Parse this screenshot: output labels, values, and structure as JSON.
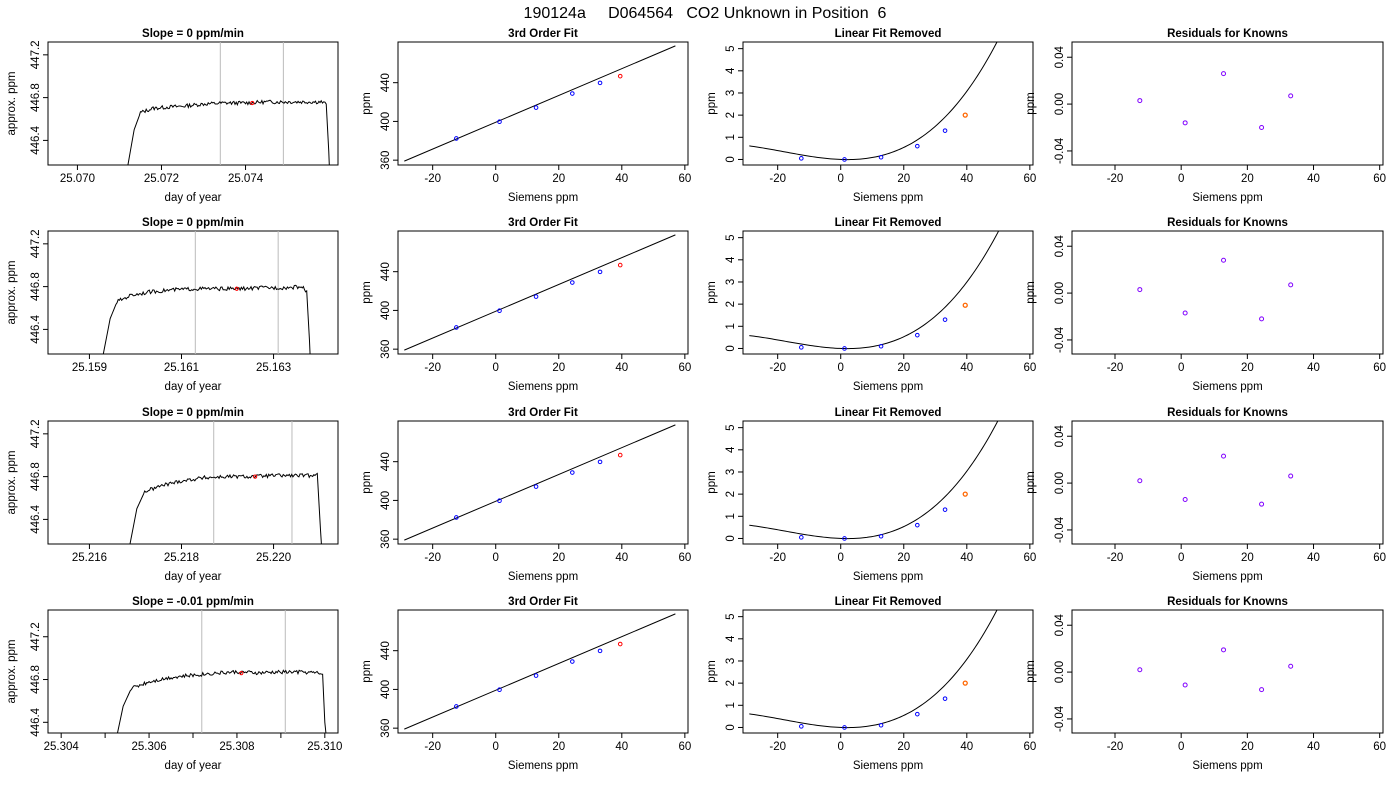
{
  "page_title": "190124a     D064564   CO2 Unknown in Position  6",
  "colors": {
    "trace": "#000000",
    "unknown_point": "#ff0000",
    "known_point": "#0000ff",
    "residual_point": "#8000ff",
    "highlight_point": "#ff6600",
    "window_line": "#bbbbbb"
  },
  "chart_data": [
    {
      "row": 1,
      "panel": "timeseries",
      "type": "line",
      "title": "Slope =  0  ppm/min",
      "xlabel": "day of year",
      "ylabel": "approx. ppm",
      "xlim": [
        25.0693,
        25.0762
      ],
      "ylim": [
        446.17,
        447.32
      ],
      "xticks": [
        25.07,
        25.072,
        25.074
      ],
      "xtick_labels": [
        "25.070",
        "25.072",
        "25.074"
      ],
      "yticks": [
        446.4,
        446.8,
        447.2
      ],
      "ytick_labels": [
        "446.4",
        "446.8",
        "447.2"
      ],
      "window_lines": [
        25.0734,
        25.0749
      ],
      "unknown_point": {
        "x": 25.07416,
        "y": 446.75
      },
      "trace": [
        [
          25.07117,
          446.1
        ],
        [
          25.07135,
          446.5
        ],
        [
          25.0715,
          446.66
        ],
        [
          25.0718,
          446.7
        ],
        [
          25.0721,
          446.71
        ],
        [
          25.0725,
          446.72
        ],
        [
          25.073,
          446.74
        ],
        [
          25.0735,
          446.75
        ],
        [
          25.074,
          446.75
        ],
        [
          25.0745,
          446.76
        ],
        [
          25.075,
          446.76
        ],
        [
          25.0755,
          446.76
        ],
        [
          25.0758,
          446.76
        ],
        [
          25.07592,
          446.74
        ],
        [
          25.07598,
          446.3
        ],
        [
          25.076,
          446.1
        ]
      ]
    },
    {
      "row": 1,
      "panel": "fit",
      "type": "scatter",
      "title": "3rd Order Fit",
      "xlabel": "Siemens ppm",
      "ylabel": "ppm",
      "xlim": [
        -31,
        61
      ],
      "ylim": [
        355,
        482
      ],
      "xticks": [
        -20,
        0,
        20,
        40,
        60
      ],
      "xtick_labels": [
        "-20",
        "0",
        "20",
        "40",
        "60"
      ],
      "yticks": [
        360,
        400,
        440
      ],
      "ytick_labels": [
        "360",
        "400",
        "440"
      ],
      "fit_line": [
        [
          -29,
          359
        ],
        [
          57,
          478
        ]
      ],
      "knowns": [
        [
          -12.5,
          382.4
        ],
        [
          1.2,
          399.7
        ],
        [
          12.8,
          414.3
        ],
        [
          24.3,
          428.8
        ],
        [
          33.1,
          439.8
        ]
      ],
      "unknown": [
        39.5,
        446.75
      ]
    },
    {
      "row": 1,
      "panel": "linear_removed",
      "type": "scatter",
      "title": "Linear Fit Removed",
      "xlabel": "Siemens ppm",
      "ylabel": "ppm",
      "xlim": [
        -31,
        61
      ],
      "ylim": [
        -0.25,
        5.3
      ],
      "xticks": [
        -20,
        0,
        20,
        40,
        60
      ],
      "xtick_labels": [
        "-20",
        "0",
        "20",
        "40",
        "60"
      ],
      "yticks": [
        0,
        1,
        2,
        3,
        4,
        5
      ],
      "ytick_labels": [
        "0",
        "1",
        "2",
        "3",
        "4",
        "5"
      ],
      "curve_xmin": -29,
      "curve_xmax": 57,
      "curve_poly": [
        0.0,
        -0.0052,
        0.00118,
        2.18e-05
      ],
      "knowns": [
        [
          -12.5,
          0.05
        ],
        [
          1.2,
          0.0
        ],
        [
          12.8,
          0.1
        ],
        [
          24.3,
          0.6
        ],
        [
          33.1,
          1.3
        ]
      ],
      "unknown": [
        39.5,
        2.0
      ]
    },
    {
      "row": 1,
      "panel": "residuals",
      "type": "scatter",
      "title": "Residuals for Knowns",
      "xlabel": "Siemens ppm",
      "ylabel": "ppm",
      "xlim": [
        -33,
        61
      ],
      "ylim": [
        -0.052,
        0.053
      ],
      "xticks": [
        -20,
        0,
        20,
        40,
        60
      ],
      "xtick_labels": [
        "-20",
        "0",
        "20",
        "40",
        "60"
      ],
      "yticks": [
        -0.04,
        0.0,
        0.04
      ],
      "ytick_labels": [
        "-0.04",
        "0.00",
        "0.04"
      ],
      "points": [
        [
          -12.5,
          0.003
        ],
        [
          1.2,
          -0.016
        ],
        [
          12.8,
          0.026
        ],
        [
          24.3,
          -0.02
        ],
        [
          33.1,
          0.007
        ]
      ]
    },
    {
      "row": 2,
      "panel": "timeseries",
      "type": "line",
      "title": "Slope =  0  ppm/min",
      "xlabel": "day of year",
      "ylabel": "approx. ppm",
      "xlim": [
        25.1581,
        25.1644
      ],
      "ylim": [
        446.17,
        447.32
      ],
      "xticks": [
        25.159,
        25.161,
        25.163
      ],
      "xtick_labels": [
        "25.159",
        "25.161",
        "25.163"
      ],
      "yticks": [
        446.4,
        446.8,
        447.2
      ],
      "ytick_labels": [
        "446.4",
        "446.8",
        "447.2"
      ],
      "window_lines": [
        25.1613,
        25.1631
      ],
      "unknown_point": {
        "x": 25.1622,
        "y": 446.78
      },
      "trace": [
        [
          25.15927,
          446.1
        ],
        [
          25.15945,
          446.5
        ],
        [
          25.1596,
          446.66
        ],
        [
          25.1599,
          446.72
        ],
        [
          25.1603,
          446.75
        ],
        [
          25.1608,
          446.77
        ],
        [
          25.1613,
          446.78
        ],
        [
          25.1618,
          446.78
        ],
        [
          25.1623,
          446.78
        ],
        [
          25.1628,
          446.79
        ],
        [
          25.1633,
          446.79
        ],
        [
          25.1636,
          446.8
        ],
        [
          25.16372,
          446.76
        ],
        [
          25.16378,
          446.3
        ],
        [
          25.1638,
          446.1
        ]
      ]
    },
    {
      "row": 2,
      "panel": "fit",
      "type": "scatter",
      "title": "3rd Order Fit",
      "xlabel": "Siemens ppm",
      "ylabel": "ppm",
      "xlim": [
        -31,
        61
      ],
      "ylim": [
        355,
        482
      ],
      "xticks": [
        -20,
        0,
        20,
        40,
        60
      ],
      "xtick_labels": [
        "-20",
        "0",
        "20",
        "40",
        "60"
      ],
      "yticks": [
        360,
        400,
        440
      ],
      "ytick_labels": [
        "360",
        "400",
        "440"
      ],
      "fit_line": [
        [
          -29,
          359
        ],
        [
          57,
          478
        ]
      ],
      "knowns": [
        [
          -12.5,
          382.4
        ],
        [
          1.2,
          399.7
        ],
        [
          12.8,
          414.3
        ],
        [
          24.3,
          428.8
        ],
        [
          33.1,
          439.8
        ]
      ],
      "unknown": [
        39.5,
        446.78
      ]
    },
    {
      "row": 2,
      "panel": "linear_removed",
      "type": "scatter",
      "title": "Linear Fit Removed",
      "xlabel": "Siemens ppm",
      "ylabel": "ppm",
      "xlim": [
        -31,
        61
      ],
      "ylim": [
        -0.25,
        5.3
      ],
      "xticks": [
        -20,
        0,
        20,
        40,
        60
      ],
      "xtick_labels": [
        "-20",
        "0",
        "20",
        "40",
        "60"
      ],
      "yticks": [
        0,
        1,
        2,
        3,
        4,
        5
      ],
      "ytick_labels": [
        "0",
        "1",
        "2",
        "3",
        "4",
        "5"
      ],
      "curve_xmin": -29,
      "curve_xmax": 57,
      "curve_poly": [
        0.0,
        -0.005,
        0.00114,
        2.14e-05
      ],
      "knowns": [
        [
          -12.5,
          0.05
        ],
        [
          1.2,
          0.0
        ],
        [
          12.8,
          0.1
        ],
        [
          24.3,
          0.6
        ],
        [
          33.1,
          1.3
        ]
      ],
      "unknown": [
        39.5,
        1.95
      ]
    },
    {
      "row": 2,
      "panel": "residuals",
      "type": "scatter",
      "title": "Residuals for Knowns",
      "xlabel": "Siemens ppm",
      "ylabel": "ppm",
      "xlim": [
        -33,
        61
      ],
      "ylim": [
        -0.052,
        0.053
      ],
      "xticks": [
        -20,
        0,
        20,
        40,
        60
      ],
      "xtick_labels": [
        "-20",
        "0",
        "20",
        "40",
        "60"
      ],
      "yticks": [
        -0.04,
        0.0,
        0.04
      ],
      "ytick_labels": [
        "-0.04",
        "0.00",
        "0.04"
      ],
      "points": [
        [
          -12.5,
          0.003
        ],
        [
          1.2,
          -0.017
        ],
        [
          12.8,
          0.028
        ],
        [
          24.3,
          -0.022
        ],
        [
          33.1,
          0.007
        ]
      ]
    },
    {
      "row": 3,
      "panel": "timeseries",
      "type": "line",
      "title": "Slope =  0  ppm/min",
      "xlabel": "day of year",
      "ylabel": "approx. ppm",
      "xlim": [
        25.2151,
        25.2214
      ],
      "ylim": [
        446.17,
        447.32
      ],
      "xticks": [
        25.216,
        25.218,
        25.22
      ],
      "xtick_labels": [
        "25.216",
        "25.218",
        "25.220"
      ],
      "yticks": [
        446.4,
        446.8,
        447.2
      ],
      "ytick_labels": [
        "446.4",
        "446.8",
        "447.2"
      ],
      "window_lines": [
        25.2187,
        25.2204
      ],
      "unknown_point": {
        "x": 25.2196,
        "y": 446.8
      },
      "trace": [
        [
          25.21685,
          446.1
        ],
        [
          25.21703,
          446.5
        ],
        [
          25.2172,
          446.66
        ],
        [
          25.2176,
          446.72
        ],
        [
          25.218,
          446.76
        ],
        [
          25.2185,
          446.79
        ],
        [
          25.219,
          446.8
        ],
        [
          25.2195,
          446.8
        ],
        [
          25.22,
          446.81
        ],
        [
          25.2205,
          446.81
        ],
        [
          25.2208,
          446.81
        ],
        [
          25.22095,
          446.83
        ],
        [
          25.22102,
          446.3
        ],
        [
          25.22105,
          446.1
        ]
      ]
    },
    {
      "row": 3,
      "panel": "fit",
      "type": "scatter",
      "title": "3rd Order Fit",
      "xlabel": "Siemens ppm",
      "ylabel": "ppm",
      "xlim": [
        -31,
        61
      ],
      "ylim": [
        355,
        482
      ],
      "xticks": [
        -20,
        0,
        20,
        40,
        60
      ],
      "xtick_labels": [
        "-20",
        "0",
        "20",
        "40",
        "60"
      ],
      "yticks": [
        360,
        400,
        440
      ],
      "ytick_labels": [
        "360",
        "400",
        "440"
      ],
      "fit_line": [
        [
          -29,
          359
        ],
        [
          57,
          478
        ]
      ],
      "knowns": [
        [
          -12.5,
          382.4
        ],
        [
          1.2,
          399.7
        ],
        [
          12.8,
          414.3
        ],
        [
          24.3,
          428.8
        ],
        [
          33.1,
          439.8
        ]
      ],
      "unknown": [
        39.5,
        446.8
      ]
    },
    {
      "row": 3,
      "panel": "linear_removed",
      "type": "scatter",
      "title": "Linear Fit Removed",
      "xlabel": "Siemens ppm",
      "ylabel": "ppm",
      "xlim": [
        -31,
        61
      ],
      "ylim": [
        -0.25,
        5.3
      ],
      "xticks": [
        -20,
        0,
        20,
        40,
        60
      ],
      "xtick_labels": [
        "-20",
        "0",
        "20",
        "40",
        "60"
      ],
      "yticks": [
        0,
        1,
        2,
        3,
        4,
        5
      ],
      "ytick_labels": [
        "0",
        "1",
        "2",
        "3",
        "4",
        "5"
      ],
      "curve_xmin": -29,
      "curve_xmax": 57,
      "curve_poly": [
        0.0,
        -0.0051,
        0.00116,
        2.16e-05
      ],
      "knowns": [
        [
          -12.5,
          0.05
        ],
        [
          1.2,
          0.0
        ],
        [
          12.8,
          0.1
        ],
        [
          24.3,
          0.6
        ],
        [
          33.1,
          1.3
        ]
      ],
      "unknown": [
        39.5,
        2.0
      ]
    },
    {
      "row": 3,
      "panel": "residuals",
      "type": "scatter",
      "title": "Residuals for Knowns",
      "xlabel": "Siemens ppm",
      "ylabel": "ppm",
      "xlim": [
        -33,
        61
      ],
      "ylim": [
        -0.052,
        0.053
      ],
      "xticks": [
        -20,
        0,
        20,
        40,
        60
      ],
      "xtick_labels": [
        "-20",
        "0",
        "20",
        "40",
        "60"
      ],
      "yticks": [
        -0.04,
        0.0,
        0.04
      ],
      "ytick_labels": [
        "-0.04",
        "0.00",
        "0.04"
      ],
      "points": [
        [
          -12.5,
          0.002
        ],
        [
          1.2,
          -0.014
        ],
        [
          12.8,
          0.023
        ],
        [
          24.3,
          -0.018
        ],
        [
          33.1,
          0.006
        ]
      ]
    },
    {
      "row": 4,
      "panel": "timeseries",
      "type": "line",
      "title": "Slope =  -0.01  ppm/min",
      "xlabel": "day of year",
      "ylabel": "approx. ppm",
      "xlim": [
        25.3037,
        25.3103
      ],
      "ylim": [
        446.3,
        447.45
      ],
      "xticks": [
        25.304,
        25.305,
        25.306,
        25.307,
        25.308,
        25.309,
        25.31
      ],
      "xtick_labels": [
        "25.304",
        "",
        "25.306",
        "",
        "25.308",
        "",
        "25.310"
      ],
      "yticks": [
        446.4,
        446.8,
        447.2
      ],
      "ytick_labels": [
        "446.4",
        "446.8",
        "447.2"
      ],
      "window_lines": [
        25.3072,
        25.3091
      ],
      "unknown_point": {
        "x": 25.3081,
        "y": 446.86
      },
      "trace": [
        [
          25.30523,
          446.2
        ],
        [
          25.30541,
          446.55
        ],
        [
          25.3056,
          446.72
        ],
        [
          25.306,
          446.78
        ],
        [
          25.3065,
          446.82
        ],
        [
          25.307,
          446.84
        ],
        [
          25.3075,
          446.86
        ],
        [
          25.308,
          446.87
        ],
        [
          25.3085,
          446.86
        ],
        [
          25.309,
          446.87
        ],
        [
          25.3095,
          446.87
        ],
        [
          25.30985,
          446.86
        ],
        [
          25.30995,
          446.85
        ],
        [
          25.31,
          446.4
        ],
        [
          25.31005,
          446.2
        ]
      ]
    },
    {
      "row": 4,
      "panel": "fit",
      "type": "scatter",
      "title": "3rd Order Fit",
      "xlabel": "Siemens ppm",
      "ylabel": "ppm",
      "xlim": [
        -31,
        61
      ],
      "ylim": [
        355,
        482
      ],
      "xticks": [
        -20,
        0,
        20,
        40,
        60
      ],
      "xtick_labels": [
        "-20",
        "0",
        "20",
        "40",
        "60"
      ],
      "yticks": [
        360,
        400,
        440
      ],
      "ytick_labels": [
        "360",
        "400",
        "440"
      ],
      "fit_line": [
        [
          -29,
          359
        ],
        [
          57,
          478
        ]
      ],
      "knowns": [
        [
          -12.5,
          382.4
        ],
        [
          1.2,
          399.7
        ],
        [
          12.8,
          414.3
        ],
        [
          24.3,
          428.8
        ],
        [
          33.1,
          439.8
        ]
      ],
      "unknown": [
        39.5,
        446.86
      ]
    },
    {
      "row": 4,
      "panel": "linear_removed",
      "type": "scatter",
      "title": "Linear Fit Removed",
      "xlabel": "Siemens ppm",
      "ylabel": "ppm",
      "xlim": [
        -31,
        61
      ],
      "ylim": [
        -0.25,
        5.3
      ],
      "xticks": [
        -20,
        0,
        20,
        40,
        60
      ],
      "xtick_labels": [
        "-20",
        "0",
        "20",
        "40",
        "60"
      ],
      "yticks": [
        0,
        1,
        2,
        3,
        4,
        5
      ],
      "ytick_labels": [
        "0",
        "1",
        "2",
        "3",
        "4",
        "5"
      ],
      "curve_xmin": -29,
      "curve_xmax": 57,
      "curve_poly": [
        0.0,
        -0.0052,
        0.00118,
        2.18e-05
      ],
      "knowns": [
        [
          -12.5,
          0.05
        ],
        [
          1.2,
          0.0
        ],
        [
          12.8,
          0.1
        ],
        [
          24.3,
          0.6
        ],
        [
          33.1,
          1.3
        ]
      ],
      "unknown": [
        39.5,
        2.0
      ]
    },
    {
      "row": 4,
      "panel": "residuals",
      "type": "scatter",
      "title": "Residuals for Knowns",
      "xlabel": "Siemens ppm",
      "ylabel": "ppm",
      "xlim": [
        -33,
        61
      ],
      "ylim": [
        -0.052,
        0.053
      ],
      "xticks": [
        -20,
        0,
        20,
        40,
        60
      ],
      "xtick_labels": [
        "-20",
        "0",
        "20",
        "40",
        "60"
      ],
      "yticks": [
        -0.04,
        0.0,
        0.04
      ],
      "ytick_labels": [
        "-0.04",
        "0.00",
        "0.04"
      ],
      "points": [
        [
          -12.5,
          0.002
        ],
        [
          1.2,
          -0.011
        ],
        [
          12.8,
          0.019
        ],
        [
          24.3,
          -0.015
        ],
        [
          33.1,
          0.005
        ]
      ]
    }
  ]
}
